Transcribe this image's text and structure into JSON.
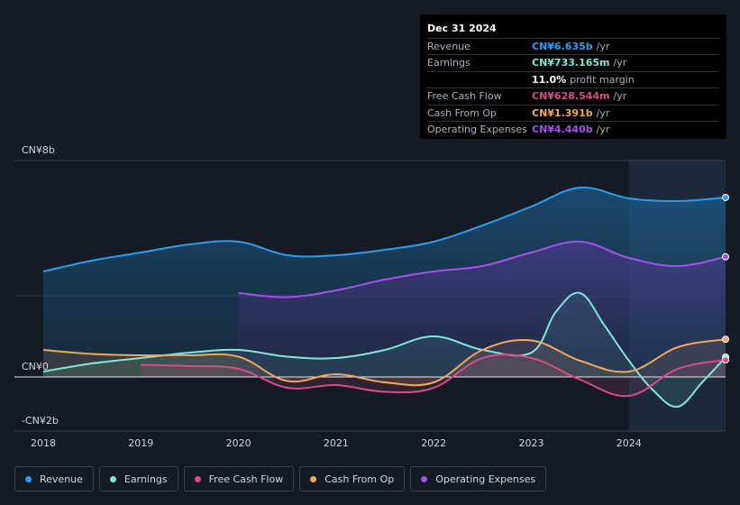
{
  "tooltip": {
    "date": "Dec 31 2024",
    "rows": [
      {
        "label": "Revenue",
        "value": "CN¥6.635b",
        "unit": "/yr",
        "color": "#2f9bec"
      },
      {
        "label": "Earnings",
        "value": "CN¥733.165m",
        "unit": "/yr",
        "color": "#7fe6d9"
      },
      {
        "label": "",
        "value": "11.0%",
        "unit": "profit margin",
        "color": "#ffffff"
      },
      {
        "label": "Free Cash Flow",
        "value": "CN¥628.544m",
        "unit": "/yr",
        "color": "#d84b86"
      },
      {
        "label": "Cash From Op",
        "value": "CN¥1.391b",
        "unit": "/yr",
        "color": "#f0a85a"
      },
      {
        "label": "Operating Expenses",
        "value": "CN¥4.440b",
        "unit": "/yr",
        "color": "#a550ea"
      }
    ]
  },
  "chart_data": {
    "type": "area",
    "title": "",
    "y_labels": {
      "top": "CN¥8b",
      "zero": "CN¥0",
      "bottom": "-CN¥2b"
    },
    "ylim": [
      -2,
      8
    ],
    "xlim": [
      2018,
      2024.99
    ],
    "x_ticks": [
      "2018",
      "2019",
      "2020",
      "2021",
      "2022",
      "2023",
      "2024"
    ],
    "grid": true,
    "highlight_start": 2024.0,
    "series": [
      {
        "name": "Revenue",
        "color": "#2f9bec",
        "x": [
          2018,
          2018.5,
          2019,
          2019.5,
          2020,
          2020.5,
          2021,
          2021.5,
          2022,
          2022.5,
          2023,
          2023.5,
          2024,
          2024.5,
          2024.99
        ],
        "values": [
          3.9,
          4.3,
          4.6,
          4.9,
          5.0,
          4.5,
          4.5,
          4.7,
          5.0,
          5.6,
          6.3,
          7.0,
          6.6,
          6.5,
          6.635
        ]
      },
      {
        "name": "Earnings",
        "color": "#7fe6d9",
        "x": [
          2018,
          2018.5,
          2019,
          2019.5,
          2020,
          2020.5,
          2021,
          2021.5,
          2022,
          2022.5,
          2023,
          2023.25,
          2023.5,
          2023.75,
          2024,
          2024.25,
          2024.5,
          2024.75,
          2024.99
        ],
        "values": [
          0.2,
          0.5,
          0.7,
          0.9,
          1.0,
          0.75,
          0.7,
          1.0,
          1.5,
          1.0,
          0.9,
          2.4,
          3.1,
          1.9,
          0.6,
          -0.5,
          -1.1,
          -0.2,
          0.733
        ]
      },
      {
        "name": "Free Cash Flow",
        "color": "#d84b86",
        "x": [
          2019,
          2019.5,
          2020,
          2020.5,
          2021,
          2021.5,
          2022,
          2022.5,
          2023,
          2023.5,
          2024,
          2024.5,
          2024.99
        ],
        "values": [
          0.45,
          0.4,
          0.3,
          -0.4,
          -0.3,
          -0.55,
          -0.4,
          0.7,
          0.7,
          -0.1,
          -0.7,
          0.3,
          0.629
        ]
      },
      {
        "name": "Cash From Op",
        "color": "#f0a85a",
        "x": [
          2018,
          2018.5,
          2019,
          2019.5,
          2020,
          2020.5,
          2021,
          2021.5,
          2022,
          2022.5,
          2023,
          2023.5,
          2024,
          2024.5,
          2024.99
        ],
        "values": [
          1.0,
          0.85,
          0.8,
          0.8,
          0.75,
          -0.15,
          0.1,
          -0.2,
          -0.2,
          1.0,
          1.35,
          0.6,
          0.2,
          1.1,
          1.391
        ]
      },
      {
        "name": "Operating Expenses",
        "color": "#a550ea",
        "x": [
          2020,
          2020.5,
          2021,
          2021.5,
          2022,
          2022.5,
          2023,
          2023.5,
          2024,
          2024.5,
          2024.99
        ],
        "values": [
          3.1,
          2.95,
          3.2,
          3.6,
          3.9,
          4.1,
          4.6,
          5.0,
          4.4,
          4.1,
          4.44
        ]
      }
    ]
  },
  "legend": [
    {
      "label": "Revenue",
      "color": "#2f9bec"
    },
    {
      "label": "Earnings",
      "color": "#7fe6d9"
    },
    {
      "label": "Free Cash Flow",
      "color": "#d84b86"
    },
    {
      "label": "Cash From Op",
      "color": "#f0a85a"
    },
    {
      "label": "Operating Expenses",
      "color": "#a550ea"
    }
  ]
}
